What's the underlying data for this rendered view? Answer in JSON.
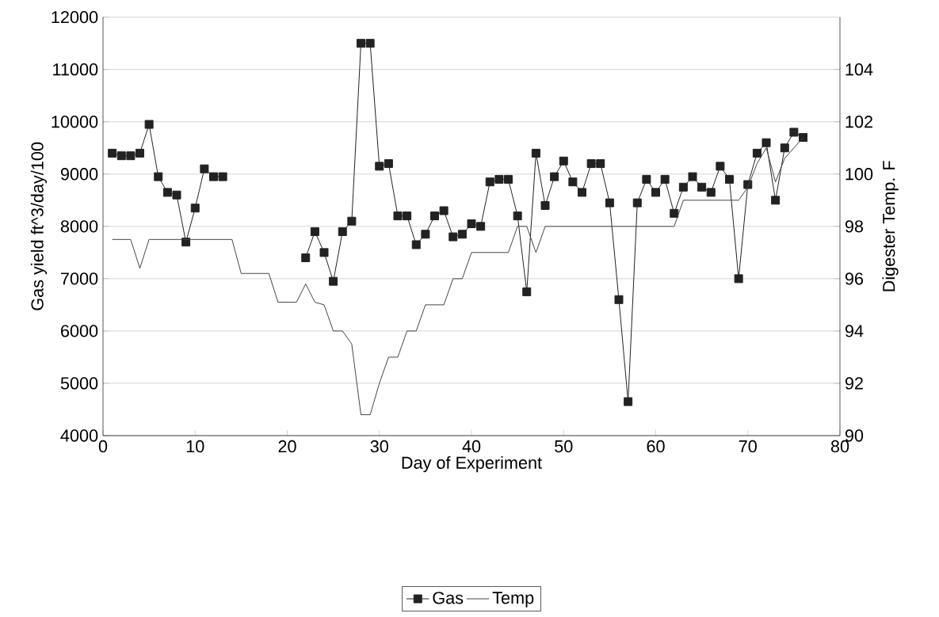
{
  "chart_data": {
    "type": "line",
    "xlabel": "Day of Experiment",
    "ylabel": "Gas yield    ft^3/day/100",
    "y2label": "Digester Temp. F",
    "x": [
      1,
      2,
      3,
      4,
      5,
      6,
      7,
      8,
      9,
      10,
      11,
      12,
      13,
      14,
      15,
      16,
      17,
      18,
      19,
      20,
      21,
      22,
      23,
      24,
      25,
      26,
      27,
      28,
      29,
      30,
      31,
      32,
      33,
      34,
      35,
      36,
      37,
      38,
      39,
      40,
      41,
      42,
      43,
      44,
      45,
      46,
      47,
      48,
      49,
      50,
      51,
      52,
      53,
      54,
      55,
      56,
      57,
      58,
      59,
      60,
      61,
      62,
      63,
      64,
      65,
      66,
      67,
      68,
      69,
      70,
      71,
      72,
      73,
      74,
      75,
      76
    ],
    "series": [
      {
        "name": "Gas",
        "color": "#222222",
        "marker": "square",
        "values": [
          9400,
          9350,
          9350,
          9400,
          9950,
          8950,
          8650,
          8600,
          7700,
          8350,
          9100,
          8950,
          8950,
          null,
          null,
          null,
          null,
          null,
          null,
          null,
          null,
          7400,
          7900,
          7500,
          6950,
          7900,
          8100,
          11500,
          11500,
          9150,
          9200,
          8200,
          8200,
          7650,
          7850,
          8200,
          8300,
          7800,
          7850,
          8050,
          8000,
          8850,
          8900,
          8900,
          8200,
          6750,
          9400,
          8400,
          8950,
          9250,
          8850,
          8650,
          9200,
          9200,
          8450,
          6600,
          4650,
          8450,
          8900,
          8650,
          8900,
          8250,
          8750,
          8950,
          8750,
          8650,
          9150,
          8900,
          7000,
          8800,
          9400,
          9600,
          8500,
          9500,
          9800,
          9700
        ]
      },
      {
        "name": "Temp",
        "color": "#444444",
        "marker": "none",
        "axis": "y2",
        "values": [
          97.5,
          97.5,
          97.5,
          96.4,
          97.5,
          97.5,
          97.5,
          97.5,
          97.5,
          97.5,
          97.5,
          97.5,
          97.5,
          97.5,
          96.2,
          96.2,
          96.2,
          96.2,
          95.1,
          95.1,
          95.1,
          95.8,
          95.1,
          95.0,
          94.0,
          94.0,
          93.5,
          90.8,
          90.8,
          92.0,
          93.0,
          93.0,
          94.0,
          94.0,
          95.0,
          95.0,
          95.0,
          96.0,
          96.0,
          97.0,
          97.0,
          97.0,
          97.0,
          97.0,
          98.0,
          98.0,
          97.0,
          98.0,
          98.0,
          98.0,
          98.0,
          98.0,
          98.0,
          98.0,
          98.0,
          98.0,
          98.0,
          98.0,
          98.0,
          98.0,
          98.0,
          98.0,
          99.0,
          99.0,
          99.0,
          99.0,
          99.0,
          99.0,
          99.0,
          99.5,
          100.4,
          101.0,
          99.7,
          100.6,
          101.0,
          101.4
        ]
      }
    ],
    "xlim": [
      0,
      80
    ],
    "xticks": [
      0,
      10,
      20,
      30,
      40,
      50,
      60,
      70,
      80
    ],
    "ylim": [
      4000,
      12000
    ],
    "yticks": [
      4000,
      5000,
      6000,
      7000,
      8000,
      9000,
      10000,
      11000,
      12000
    ],
    "y2lim": [
      90,
      106
    ],
    "y2ticks": [
      90,
      92,
      94,
      96,
      98,
      100,
      102,
      104
    ],
    "grid": "y",
    "legend": "bottom",
    "line_style": "solid"
  }
}
